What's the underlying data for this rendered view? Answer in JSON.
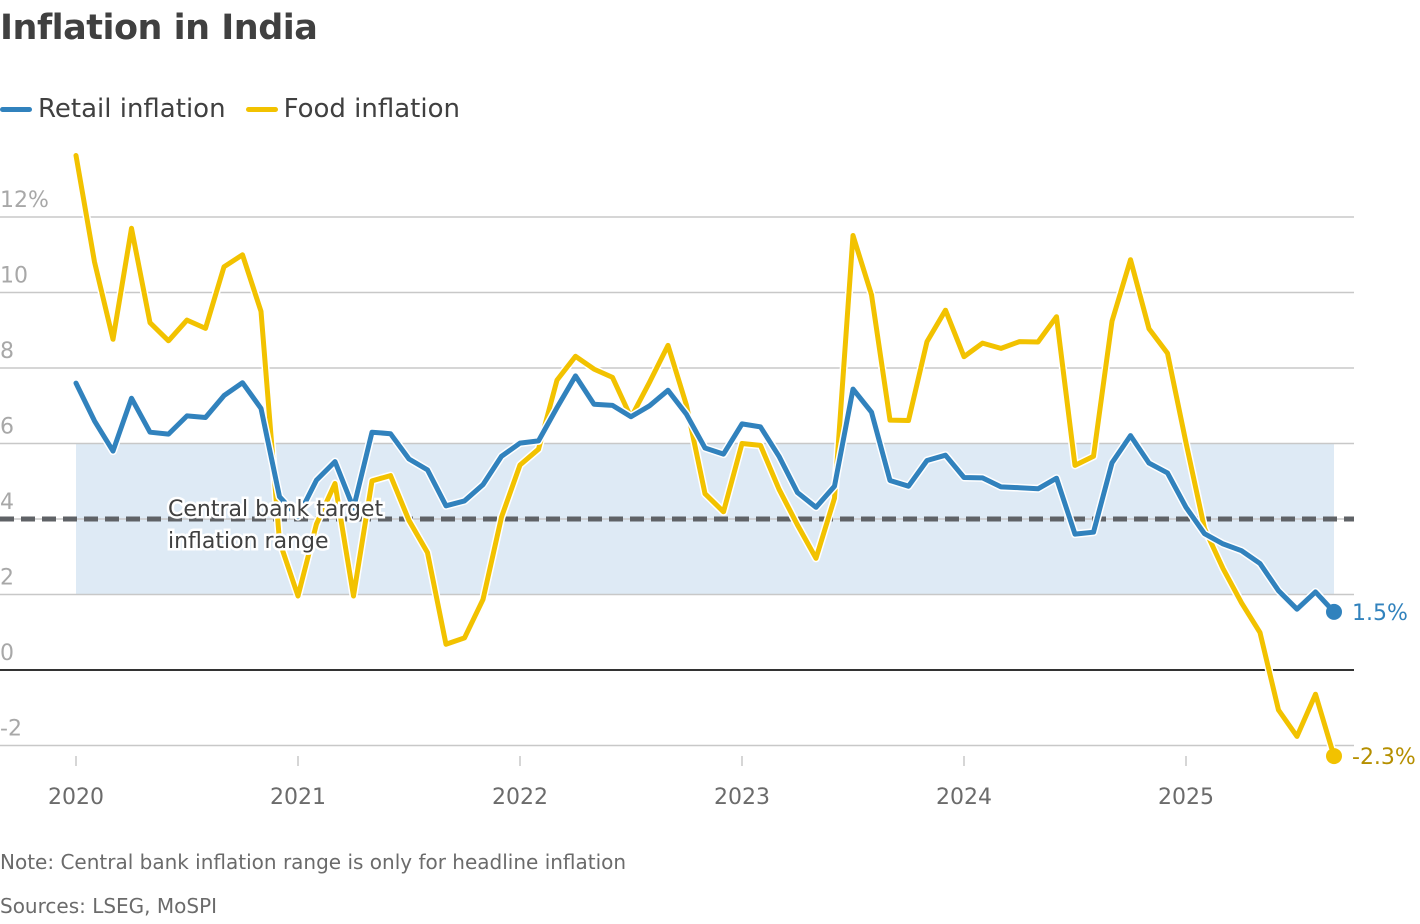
{
  "chart_data": {
    "type": "line",
    "title": "Inflation in India",
    "xlabel": "",
    "ylabel": "",
    "y_unit": "%",
    "ylim": [
      -2,
      13.6
    ],
    "yticks": [
      -2,
      0,
      2,
      4,
      6,
      8,
      10,
      12
    ],
    "ytick_labels": [
      "-2",
      "0",
      "2",
      "4",
      "6",
      "8",
      "10",
      "12%"
    ],
    "xticks": [
      "2020",
      "2021",
      "2022",
      "2023",
      "2024",
      "2025"
    ],
    "x_start": "2020-01",
    "x_end": "2025-09",
    "frequency": "monthly",
    "grid": true,
    "legend_position": "top-left",
    "series": [
      {
        "name": "Retail inflation",
        "color": "#3182bd",
        "end_label": "1.5%",
        "values": [
          7.6,
          6.6,
          5.8,
          7.2,
          6.3,
          6.25,
          6.73,
          6.69,
          7.27,
          7.61,
          6.93,
          4.59,
          4.06,
          5.03,
          5.52,
          4.29,
          6.3,
          6.26,
          5.59,
          5.3,
          4.35,
          4.48,
          4.91,
          5.66,
          6.01,
          6.07,
          6.95,
          7.79,
          7.04,
          7.01,
          6.71,
          7.0,
          7.41,
          6.77,
          5.88,
          5.72,
          6.52,
          6.44,
          5.66,
          4.7,
          4.31,
          4.87,
          7.44,
          6.83,
          5.02,
          4.87,
          5.55,
          5.69,
          5.1,
          5.09,
          4.85,
          4.83,
          4.8,
          5.08,
          3.6,
          3.65,
          5.49,
          6.21,
          5.48,
          5.22,
          4.31,
          3.61,
          3.34,
          3.16,
          2.82,
          2.1,
          1.61,
          2.07,
          1.54
        ]
      },
      {
        "name": "Food inflation",
        "color": "#f2c200",
        "end_label": "-2.3%",
        "values": [
          13.63,
          10.81,
          8.76,
          11.7,
          9.2,
          8.72,
          9.27,
          9.05,
          10.68,
          11.0,
          9.5,
          3.41,
          1.96,
          3.87,
          4.94,
          1.96,
          5.01,
          5.15,
          3.96,
          3.11,
          0.68,
          0.85,
          1.87,
          4.05,
          5.43,
          5.85,
          7.68,
          8.31,
          7.97,
          7.75,
          6.69,
          7.62,
          8.6,
          7.01,
          4.67,
          4.19,
          6.0,
          5.95,
          4.79,
          3.84,
          2.96,
          4.55,
          11.51,
          9.94,
          6.62,
          6.61,
          8.7,
          9.53,
          8.3,
          8.66,
          8.52,
          8.7,
          8.69,
          9.36,
          5.42,
          5.66,
          9.24,
          10.87,
          9.04,
          8.39,
          6.02,
          3.75,
          2.69,
          1.78,
          0.99,
          -1.06,
          -1.76,
          -0.64,
          -2.28
        ]
      }
    ],
    "target_band": {
      "low": 2,
      "high": 6,
      "midpoint": 4,
      "color": "#deeaf5"
    },
    "annotations": [
      {
        "text_line1": "Central bank target",
        "text_line2": "inflation range"
      }
    ]
  },
  "legend": [
    {
      "label": "Retail inflation",
      "color": "#3182bd"
    },
    {
      "label": "Food inflation",
      "color": "#f2c200"
    }
  ],
  "footer": {
    "note": "Note: Central bank inflation range is only for headline inflation",
    "sources": "Sources: LSEG, MoSPI"
  }
}
